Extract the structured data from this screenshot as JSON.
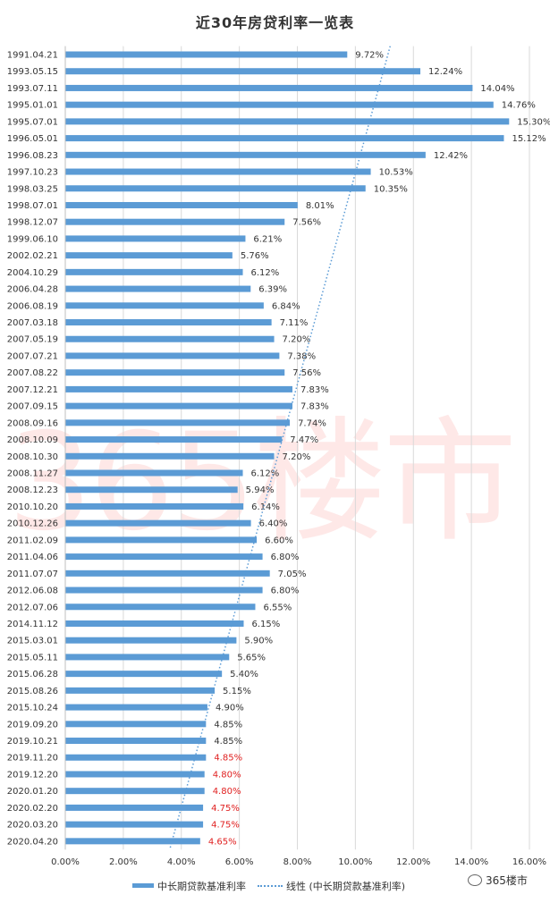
{
  "chart_data": {
    "type": "bar",
    "orientation": "horizontal",
    "title": "近30年房贷利率一览表",
    "categories": [
      "1991.04.21",
      "1993.05.15",
      "1993.07.11",
      "1995.01.01",
      "1995.07.01",
      "1996.05.01",
      "1996.08.23",
      "1997.10.23",
      "1998.03.25",
      "1998.07.01",
      "1998.12.07",
      "1999.06.10",
      "2002.02.21",
      "2004.10.29",
      "2006.04.28",
      "2006.08.19",
      "2007.03.18",
      "2007.05.19",
      "2007.07.21",
      "2007.08.22",
      "2007.12.21",
      "2007.09.15",
      "2008.09.16",
      "2008.10.09",
      "2008.10.30",
      "2008.11.27",
      "2008.12.23",
      "2010.10.20",
      "2010.12.26",
      "2011.02.09",
      "2011.04.06",
      "2011.07.07",
      "2012.06.08",
      "2012.07.06",
      "2014.11.12",
      "2015.03.01",
      "2015.05.11",
      "2015.06.28",
      "2015.08.26",
      "2015.10.24",
      "2019.09.20",
      "2019.10.21",
      "2019.11.20",
      "2019.12.20",
      "2020.01.20",
      "2020.02.20",
      "2020.03.20",
      "2020.04.20"
    ],
    "series": [
      {
        "name": "中长期贷款基准利率",
        "color": "#5b9bd5",
        "values": [
          9.72,
          12.24,
          14.04,
          14.76,
          15.3,
          15.12,
          12.42,
          10.53,
          10.35,
          8.01,
          7.56,
          6.21,
          5.76,
          6.12,
          6.39,
          6.84,
          7.11,
          7.2,
          7.38,
          7.56,
          7.83,
          7.83,
          7.74,
          7.47,
          7.2,
          6.12,
          5.94,
          6.14,
          6.4,
          6.6,
          6.8,
          7.05,
          6.8,
          6.55,
          6.15,
          5.9,
          5.65,
          5.4,
          5.15,
          4.9,
          4.85,
          4.85,
          4.85,
          4.8,
          4.8,
          4.75,
          4.75,
          4.65
        ],
        "labels": [
          "9.72%",
          "12.24%",
          "14.04%",
          "14.76%",
          "15.30%",
          "15.12%",
          "12.42%",
          "10.53%",
          "10.35%",
          "8.01%",
          "7.56%",
          "6.21%",
          "5.76%",
          "6.12%",
          "6.39%",
          "6.84%",
          "7.11%",
          "7.20%",
          "7.38%",
          "7.56%",
          "7.83%",
          "7.83%",
          "7.74%",
          "7.47%",
          "7.20%",
          "6.12%",
          "5.94%",
          "6.14%",
          "6.40%",
          "6.60%",
          "6.80%",
          "7.05%",
          "6.80%",
          "6.55%",
          "6.15%",
          "5.90%",
          "5.65%",
          "5.40%",
          "5.15%",
          "4.90%",
          "4.85%",
          "4.85%",
          "4.85%",
          "4.80%",
          "4.80%",
          "4.75%",
          "4.75%",
          "4.65%"
        ],
        "highlighted_label_indices": [
          42,
          43,
          44,
          45,
          46,
          47
        ],
        "highlight_color": "#e02020"
      },
      {
        "name": "线性 (中长期贷款基准利率)",
        "type": "trendline",
        "color": "#5b9bd5",
        "style": "dotted",
        "from": [
          11.2,
          "1991.04.21"
        ],
        "to": [
          3.6,
          "2020.04.20"
        ]
      }
    ],
    "xlim": [
      0,
      16
    ],
    "xticks": [
      "0.00%",
      "2.00%",
      "4.00%",
      "6.00%",
      "8.00%",
      "10.00%",
      "12.00%",
      "14.00%",
      "16.00%"
    ],
    "grid": true,
    "legend": "bottom",
    "label_color": "#333333",
    "grid_color": "#d9d9d9"
  },
  "watermark": "365楼市",
  "brand": "365楼市",
  "brand_icon": "wechat-icon"
}
